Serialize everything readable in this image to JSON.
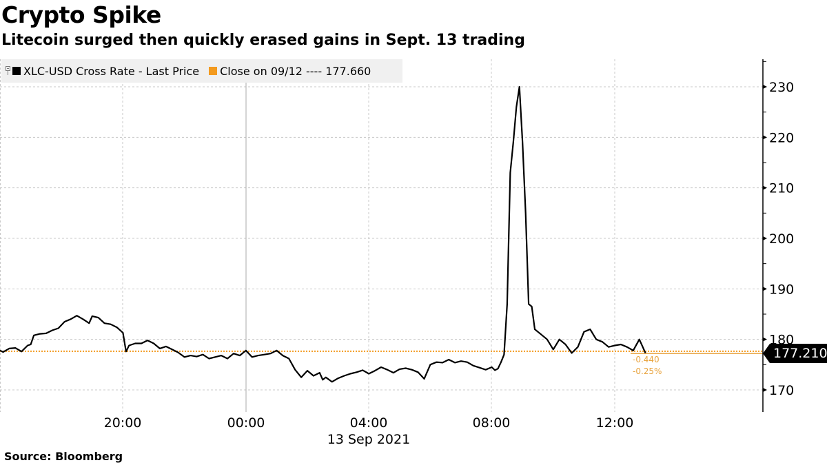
{
  "header": {
    "title": "Crypto Spike",
    "subtitle": "Litecoin surged then quickly erased gains in Sept. 13 trading"
  },
  "legend": {
    "series_label": "XLC-USD Cross Rate - Last Price",
    "series_color": "#000000",
    "close_label": "Close on 09/12 ---- 177.660",
    "close_color": "#f39a1e"
  },
  "last_value": {
    "label": "177.210",
    "change": "-0.440",
    "change_pct": "-0.25%"
  },
  "footer": {
    "source": "Source:  Bloomberg"
  },
  "chart_data": {
    "type": "line",
    "title": "Crypto Spike",
    "subtitle": "Litecoin surged then quickly erased gains in Sept. 13 trading",
    "xlabel": "13 Sep 2021",
    "ylabel": "",
    "x_ticks": [
      "20:00",
      "00:00",
      "04:00",
      "08:00",
      "12:00"
    ],
    "x_tick_sublabel": "13 Sep 2021",
    "y_ticks": [
      170,
      180,
      190,
      200,
      210,
      220,
      230
    ],
    "ylim": [
      165.5,
      235.5
    ],
    "grid": true,
    "legend_position": "top-left",
    "reference_line": {
      "name": "Close on 09/12",
      "value": 177.66,
      "color": "#f39a1e",
      "style": "dotted"
    },
    "last_value": 177.21,
    "change": -0.44,
    "change_pct": -0.25,
    "series": [
      {
        "name": "XLC-USD Cross Rate - Last Price",
        "color": "#000000",
        "x_hours_from_16": [
          0,
          0.1,
          0.3,
          0.5,
          0.7,
          0.9,
          1.0,
          1.1,
          1.3,
          1.5,
          1.7,
          1.9,
          2.1,
          2.3,
          2.5,
          2.7,
          2.9,
          3.0,
          3.2,
          3.4,
          3.6,
          3.8,
          4.0,
          4.1,
          4.2,
          4.4,
          4.6,
          4.8,
          5.0,
          5.2,
          5.4,
          5.6,
          5.8,
          6.0,
          6.2,
          6.4,
          6.6,
          6.8,
          7.0,
          7.2,
          7.4,
          7.6,
          7.8,
          8.0,
          8.2,
          8.4,
          8.6,
          8.8,
          9.0,
          9.2,
          9.4,
          9.6,
          9.8,
          10.0,
          10.2,
          10.4,
          10.5,
          10.6,
          10.8,
          11.0,
          11.2,
          11.4,
          11.6,
          11.8,
          12.0,
          12.2,
          12.4,
          12.6,
          12.8,
          13.0,
          13.2,
          13.4,
          13.6,
          13.8,
          14.0,
          14.2,
          14.4,
          14.6,
          14.8,
          15.0,
          15.2,
          15.4,
          15.6,
          15.8,
          16.0,
          16.1,
          16.2,
          16.3,
          16.4,
          16.5,
          16.6,
          16.7,
          16.8,
          16.9,
          17.0,
          17.1,
          17.2,
          17.3,
          17.4,
          17.5,
          17.6,
          17.8,
          18.0,
          18.2,
          18.4,
          18.6,
          18.8,
          19.0,
          19.2,
          19.4,
          19.6,
          19.8,
          20.0,
          20.2,
          20.4,
          20.6,
          20.8,
          21.0
        ],
        "values": [
          177.8,
          177.5,
          178.2,
          178.3,
          177.6,
          178.8,
          179.0,
          180.8,
          181.1,
          181.2,
          181.8,
          182.2,
          183.5,
          184.0,
          184.7,
          184.0,
          183.2,
          184.6,
          184.3,
          183.2,
          183.0,
          182.4,
          181.3,
          177.6,
          178.8,
          179.2,
          179.2,
          179.8,
          179.2,
          178.2,
          178.6,
          178.0,
          177.4,
          176.5,
          176.8,
          176.6,
          177.0,
          176.2,
          176.5,
          176.8,
          176.2,
          177.2,
          176.8,
          177.8,
          176.5,
          176.8,
          177.0,
          177.2,
          177.8,
          176.8,
          176.2,
          174.0,
          172.5,
          173.8,
          172.8,
          173.4,
          172.0,
          172.5,
          171.6,
          172.3,
          172.8,
          173.2,
          173.5,
          173.9,
          173.2,
          173.8,
          174.5,
          174.0,
          173.4,
          174.1,
          174.3,
          174.0,
          173.5,
          172.2,
          175.0,
          175.5,
          175.4,
          176.0,
          175.4,
          175.7,
          175.5,
          174.8,
          174.4,
          174.0,
          174.5,
          173.9,
          174.2,
          175.5,
          177.0,
          187.0,
          213.0,
          219.0,
          226.0,
          230.0,
          219.0,
          205.0,
          187.0,
          186.5,
          182.0,
          181.5,
          181.0,
          180.0,
          178.0,
          180.0,
          179.0,
          177.3,
          178.5,
          181.5,
          182.0,
          180.0,
          179.5,
          178.5,
          178.8,
          179.0,
          178.5,
          177.8,
          180.0,
          177.3
        ]
      }
    ]
  }
}
